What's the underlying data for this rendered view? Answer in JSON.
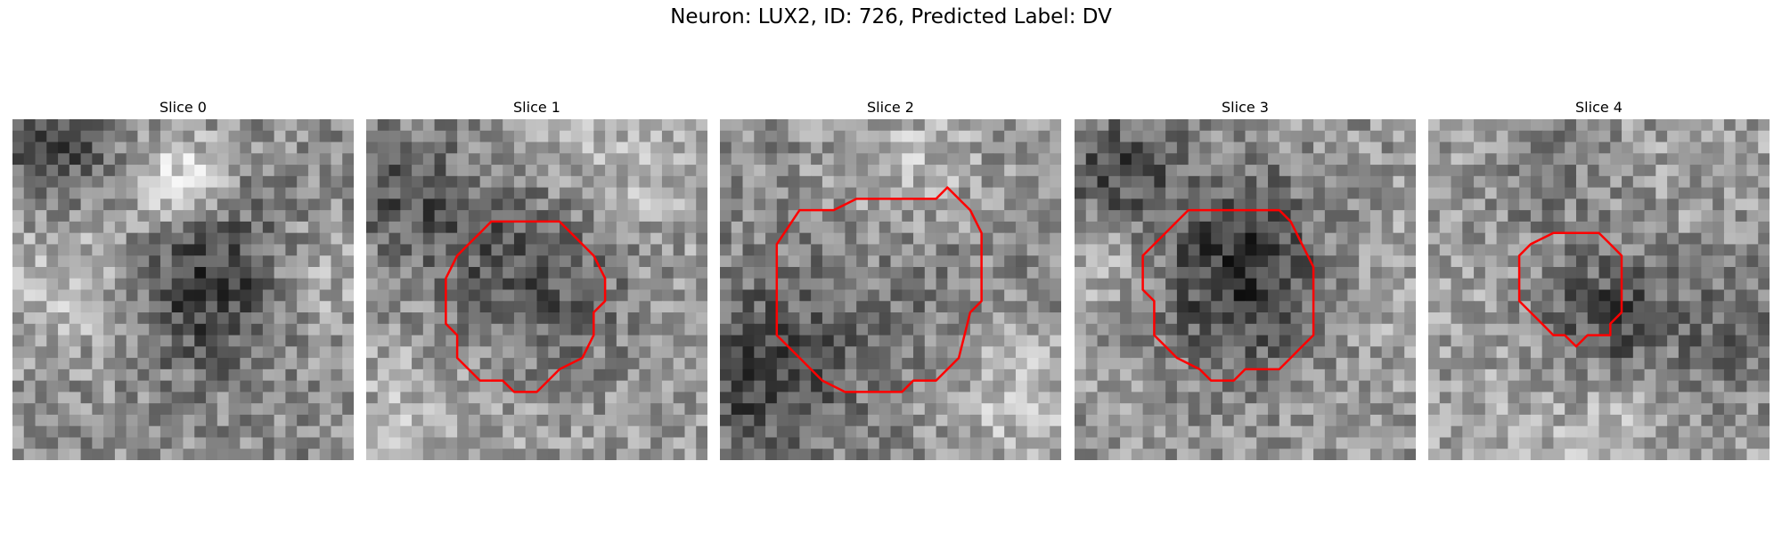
{
  "figure": {
    "title": "Neuron: LUX2, ID: 726, Predicted Label: DV",
    "contour_color": "#ff0000"
  },
  "slices": [
    {
      "label": "Slice 0"
    },
    {
      "label": "Slice 1"
    },
    {
      "label": "Slice 2"
    },
    {
      "label": "Slice 3"
    },
    {
      "label": "Slice 4"
    }
  ]
}
